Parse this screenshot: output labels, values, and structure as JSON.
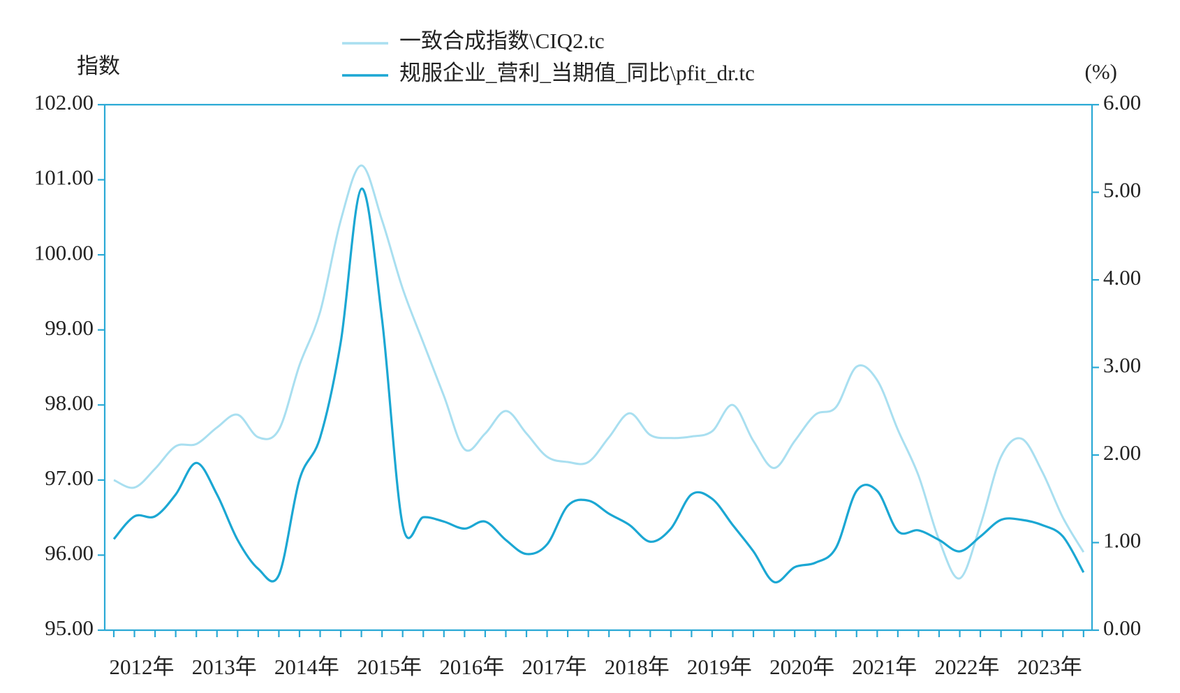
{
  "chart_data": {
    "type": "line",
    "y_label": "指数",
    "y2_label": "(%)",
    "categories": [
      "2012年",
      null,
      null,
      null,
      "2013年",
      null,
      null,
      null,
      "2014年",
      null,
      null,
      null,
      "2015年",
      null,
      null,
      null,
      "2016年",
      null,
      null,
      null,
      "2017年",
      null,
      null,
      null,
      "2018年",
      null,
      null,
      null,
      "2019年",
      null,
      null,
      null,
      "2020年",
      null,
      null,
      null,
      "2021年",
      null,
      null,
      null,
      "2022年",
      null,
      null,
      null,
      "2023年",
      null,
      null,
      null
    ],
    "series": [
      {
        "name": "一致合成指数\\CIQ2.tc",
        "color": "#a9dff0",
        "values": [
          97.0,
          96.9,
          97.15,
          97.45,
          97.48,
          97.7,
          97.87,
          97.57,
          97.67,
          98.53,
          99.24,
          100.46,
          101.19,
          100.46,
          99.55,
          98.83,
          98.12,
          97.41,
          97.62,
          97.92,
          97.62,
          97.31,
          97.24,
          97.24,
          97.57,
          97.89,
          97.6,
          97.56,
          97.58,
          97.65,
          98.0,
          97.52,
          97.16,
          97.52,
          97.87,
          97.97,
          98.51,
          98.33,
          97.67,
          97.06,
          96.2,
          95.69,
          96.4,
          97.31,
          97.55,
          97.11,
          96.5,
          96.04
        ]
      },
      {
        "name": "规服企业_营利_当期值_同比\\pfit_dr.tc",
        "color": "#1ba7d3",
        "axis": "y2",
        "values": [
          1.04,
          1.3,
          1.3,
          1.55,
          1.91,
          1.55,
          1.03,
          0.7,
          0.63,
          1.72,
          2.2,
          3.29,
          5.04,
          3.55,
          1.2,
          1.29,
          1.24,
          1.16,
          1.24,
          1.03,
          0.87,
          0.98,
          1.42,
          1.48,
          1.33,
          1.2,
          1.01,
          1.16,
          1.55,
          1.5,
          1.2,
          0.9,
          0.55,
          0.72,
          0.77,
          0.94,
          1.59,
          1.59,
          1.13,
          1.14,
          1.03,
          0.9,
          1.07,
          1.26,
          1.26,
          1.2,
          1.07,
          0.66
        ]
      }
    ],
    "ylim": [
      95,
      102
    ],
    "yticks": [
      {
        "value": 95,
        "label": "95.00"
      },
      {
        "value": 96,
        "label": "96.00"
      },
      {
        "value": 97,
        "label": "97.00"
      },
      {
        "value": 98,
        "label": "98.00"
      },
      {
        "value": 99,
        "label": "99.00"
      },
      {
        "value": 100,
        "label": "100.00"
      },
      {
        "value": 101,
        "label": "101.00"
      },
      {
        "value": 102,
        "label": "102.00"
      }
    ],
    "y2lim": [
      0,
      6
    ],
    "y2ticks": [
      {
        "value": 0,
        "label": "0.00"
      },
      {
        "value": 1,
        "label": "1.00"
      },
      {
        "value": 2,
        "label": "2.00"
      },
      {
        "value": 3,
        "label": "3.00"
      },
      {
        "value": 4,
        "label": "4.00"
      },
      {
        "value": 5,
        "label": "5.00"
      },
      {
        "value": 6,
        "label": "6.00"
      }
    ],
    "grid": false
  }
}
